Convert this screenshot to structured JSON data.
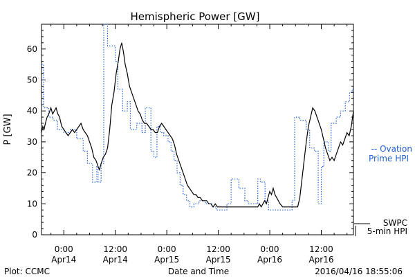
{
  "chart_data": {
    "type": "line",
    "title": "Hemispheric Power [GW]",
    "xlabel": "Date and Time",
    "ylabel": "P [GW]",
    "ylim": [
      0,
      68
    ],
    "y_ticks": [
      0,
      10,
      20,
      30,
      40,
      50,
      60
    ],
    "x_ticks": [
      {
        "t": 0,
        "line1": "0:00",
        "line2": "Apr14"
      },
      {
        "t": 12,
        "line1": "12:00",
        "line2": "Apr14"
      },
      {
        "t": 24,
        "line1": "0:00",
        "line2": "Apr15"
      },
      {
        "t": 36,
        "line1": "12:00",
        "line2": "Apr15"
      },
      {
        "t": 48,
        "line1": "0:00",
        "line2": "Apr16"
      },
      {
        "t": 60,
        "line1": "12:00",
        "line2": "Apr16"
      }
    ],
    "xlim": [
      -5.2,
      67.5
    ],
    "grid": false,
    "colors": {
      "swpc": "#000000",
      "ovation": "#1f5fd6"
    },
    "series": [
      {
        "name": "SWPC 5-min HPI",
        "style": "solid",
        "points": [
          [
            -5.2,
            33
          ],
          [
            -4.9,
            35
          ],
          [
            -4.6,
            34
          ],
          [
            -4.3,
            36
          ],
          [
            -3.9,
            38
          ],
          [
            -3.5,
            39
          ],
          [
            -3.0,
            41
          ],
          [
            -2.6,
            39
          ],
          [
            -2.2,
            40
          ],
          [
            -1.8,
            41
          ],
          [
            -1.4,
            39
          ],
          [
            -1.0,
            38
          ],
          [
            -0.5,
            35
          ],
          [
            0,
            34
          ],
          [
            0.5,
            33
          ],
          [
            1.0,
            32
          ],
          [
            1.5,
            33
          ],
          [
            2.0,
            34
          ],
          [
            2.5,
            33
          ],
          [
            3.0,
            34
          ],
          [
            3.5,
            35
          ],
          [
            4.0,
            36
          ],
          [
            4.5,
            34
          ],
          [
            5.0,
            33
          ],
          [
            5.5,
            32
          ],
          [
            6.0,
            30
          ],
          [
            6.5,
            28
          ],
          [
            7.0,
            25
          ],
          [
            7.5,
            24
          ],
          [
            8.0,
            22
          ],
          [
            8.3,
            21
          ],
          [
            8.7,
            23
          ],
          [
            9.2,
            25
          ],
          [
            9.7,
            26
          ],
          [
            10.2,
            28
          ],
          [
            10.7,
            34
          ],
          [
            11.2,
            42
          ],
          [
            11.7,
            46
          ],
          [
            12.2,
            52
          ],
          [
            12.7,
            56
          ],
          [
            13.1,
            60
          ],
          [
            13.5,
            62
          ],
          [
            13.9,
            59
          ],
          [
            14.3,
            55
          ],
          [
            14.8,
            52
          ],
          [
            15.3,
            48
          ],
          [
            15.8,
            46
          ],
          [
            16.3,
            44
          ],
          [
            16.8,
            42
          ],
          [
            17.3,
            40
          ],
          [
            17.8,
            39
          ],
          [
            18.3,
            37
          ],
          [
            18.8,
            36
          ],
          [
            19.3,
            36
          ],
          [
            19.8,
            35
          ],
          [
            20.3,
            34
          ],
          [
            20.8,
            34
          ],
          [
            21.3,
            33
          ],
          [
            21.8,
            33
          ],
          [
            22.3,
            35
          ],
          [
            22.8,
            36
          ],
          [
            23.3,
            35
          ],
          [
            23.8,
            34
          ],
          [
            24.3,
            33
          ],
          [
            24.8,
            32
          ],
          [
            25.3,
            31
          ],
          [
            25.8,
            29
          ],
          [
            26.3,
            26
          ],
          [
            26.8,
            24
          ],
          [
            27.3,
            22
          ],
          [
            27.8,
            20
          ],
          [
            28.3,
            18
          ],
          [
            28.8,
            16
          ],
          [
            29.3,
            15
          ],
          [
            29.8,
            14
          ],
          [
            30.3,
            13
          ],
          [
            30.8,
            13
          ],
          [
            31.3,
            12
          ],
          [
            31.8,
            12
          ],
          [
            32.3,
            11
          ],
          [
            32.8,
            11
          ],
          [
            33.3,
            11
          ],
          [
            33.8,
            10
          ],
          [
            34.3,
            10
          ],
          [
            34.8,
            9
          ],
          [
            35.3,
            10
          ],
          [
            35.8,
            9
          ],
          [
            36.5,
            9
          ],
          [
            37.5,
            9
          ],
          [
            38.5,
            9
          ],
          [
            39.5,
            9
          ],
          [
            40.5,
            9
          ],
          [
            41.5,
            9
          ],
          [
            42.5,
            9
          ],
          [
            43.5,
            9
          ],
          [
            44.5,
            9
          ],
          [
            45.2,
            9
          ],
          [
            45.6,
            10
          ],
          [
            46.0,
            9
          ],
          [
            46.4,
            10
          ],
          [
            46.8,
            11
          ],
          [
            47.2,
            10
          ],
          [
            47.6,
            12
          ],
          [
            48.0,
            14
          ],
          [
            48.4,
            13
          ],
          [
            48.8,
            15
          ],
          [
            49.2,
            13
          ],
          [
            49.6,
            12
          ],
          [
            50.0,
            11
          ],
          [
            50.4,
            10
          ],
          [
            51.0,
            9
          ],
          [
            52.0,
            9
          ],
          [
            53.0,
            9
          ],
          [
            54.0,
            9
          ],
          [
            54.5,
            9
          ],
          [
            55.0,
            12
          ],
          [
            55.5,
            18
          ],
          [
            56.0,
            24
          ],
          [
            56.5,
            30
          ],
          [
            57.0,
            35
          ],
          [
            57.5,
            38
          ],
          [
            58.0,
            41
          ],
          [
            58.5,
            40
          ],
          [
            59.0,
            38
          ],
          [
            59.5,
            36
          ],
          [
            60.0,
            34
          ],
          [
            60.5,
            31
          ],
          [
            61.0,
            28
          ],
          [
            61.5,
            26
          ],
          [
            62.0,
            24
          ],
          [
            62.5,
            25
          ],
          [
            63.0,
            24
          ],
          [
            63.5,
            26
          ],
          [
            64.0,
            28
          ],
          [
            64.5,
            30
          ],
          [
            65.0,
            29
          ],
          [
            65.5,
            31
          ],
          [
            66.0,
            33
          ],
          [
            66.5,
            32
          ],
          [
            67.0,
            35
          ],
          [
            67.5,
            40
          ]
        ]
      },
      {
        "name": "Ovation Prime HPI",
        "style": "dotted",
        "points": [
          [
            -5.2,
            55
          ],
          [
            -4.7,
            55
          ],
          [
            -4.7,
            41
          ],
          [
            -3.5,
            41
          ],
          [
            -3.5,
            38
          ],
          [
            -2.5,
            38
          ],
          [
            -2.5,
            37
          ],
          [
            -1.5,
            37
          ],
          [
            -1.5,
            34
          ],
          [
            0,
            34
          ],
          [
            0,
            33
          ],
          [
            1.5,
            33
          ],
          [
            1.5,
            34
          ],
          [
            3,
            34
          ],
          [
            3,
            31
          ],
          [
            4.5,
            31
          ],
          [
            4.5,
            27
          ],
          [
            5.5,
            27
          ],
          [
            5.5,
            23
          ],
          [
            6.7,
            23
          ],
          [
            6.7,
            17
          ],
          [
            7.7,
            17
          ],
          [
            7.7,
            22
          ],
          [
            8.0,
            22
          ],
          [
            8.0,
            17
          ],
          [
            8.7,
            17
          ],
          [
            8.7,
            23
          ],
          [
            9.3,
            23
          ],
          [
            9.3,
            68
          ],
          [
            10.2,
            68
          ],
          [
            10.2,
            61
          ],
          [
            12.0,
            61
          ],
          [
            12.0,
            56
          ],
          [
            12.6,
            56
          ],
          [
            12.6,
            47
          ],
          [
            13.7,
            47
          ],
          [
            13.7,
            40
          ],
          [
            14.8,
            40
          ],
          [
            14.8,
            43
          ],
          [
            15.5,
            43
          ],
          [
            15.5,
            34
          ],
          [
            17.0,
            34
          ],
          [
            17.0,
            36
          ],
          [
            18.2,
            36
          ],
          [
            18.2,
            33
          ],
          [
            19.0,
            33
          ],
          [
            19.0,
            41
          ],
          [
            20.3,
            41
          ],
          [
            20.3,
            27
          ],
          [
            21.0,
            27
          ],
          [
            21.0,
            25
          ],
          [
            21.7,
            25
          ],
          [
            21.7,
            35
          ],
          [
            22.5,
            35
          ],
          [
            22.5,
            33
          ],
          [
            23.3,
            33
          ],
          [
            23.3,
            32
          ],
          [
            24.3,
            32
          ],
          [
            24.3,
            30
          ],
          [
            25.0,
            30
          ],
          [
            25.0,
            27
          ],
          [
            25.7,
            27
          ],
          [
            25.7,
            24
          ],
          [
            26.4,
            24
          ],
          [
            26.4,
            20
          ],
          [
            27.1,
            20
          ],
          [
            27.1,
            16
          ],
          [
            27.8,
            16
          ],
          [
            27.8,
            13
          ],
          [
            28.6,
            13
          ],
          [
            28.6,
            11
          ],
          [
            29.4,
            11
          ],
          [
            29.4,
            9
          ],
          [
            30.3,
            9
          ],
          [
            30.3,
            10
          ],
          [
            31.5,
            10
          ],
          [
            31.5,
            11
          ],
          [
            33.0,
            11
          ],
          [
            33.0,
            10
          ],
          [
            34.5,
            10
          ],
          [
            34.5,
            9
          ],
          [
            35.5,
            9
          ],
          [
            35.5,
            8
          ],
          [
            38.0,
            8
          ],
          [
            38.0,
            10
          ],
          [
            39.0,
            10
          ],
          [
            39.0,
            18
          ],
          [
            40.8,
            18
          ],
          [
            40.8,
            15
          ],
          [
            42.2,
            15
          ],
          [
            42.2,
            11
          ],
          [
            43.0,
            11
          ],
          [
            43.0,
            10
          ],
          [
            45.2,
            10
          ],
          [
            45.2,
            18
          ],
          [
            45.8,
            18
          ],
          [
            45.8,
            17
          ],
          [
            46.9,
            17
          ],
          [
            46.9,
            11
          ],
          [
            47.7,
            11
          ],
          [
            47.7,
            8
          ],
          [
            53.2,
            8
          ],
          [
            53.2,
            11
          ],
          [
            53.8,
            11
          ],
          [
            53.8,
            38
          ],
          [
            55.0,
            38
          ],
          [
            55.0,
            37
          ],
          [
            56.5,
            37
          ],
          [
            56.5,
            34
          ],
          [
            57.3,
            34
          ],
          [
            57.3,
            28
          ],
          [
            58.4,
            28
          ],
          [
            58.4,
            27
          ],
          [
            59.3,
            27
          ],
          [
            59.3,
            10
          ],
          [
            60.0,
            10
          ],
          [
            60.0,
            22
          ],
          [
            60.6,
            22
          ],
          [
            60.6,
            30
          ],
          [
            61.7,
            30
          ],
          [
            61.7,
            27
          ],
          [
            62.3,
            27
          ],
          [
            62.3,
            36
          ],
          [
            63.5,
            36
          ],
          [
            63.5,
            38
          ],
          [
            64.5,
            38
          ],
          [
            64.5,
            40
          ],
          [
            65.6,
            40
          ],
          [
            65.6,
            43
          ],
          [
            66.6,
            43
          ],
          [
            66.6,
            46
          ],
          [
            67.2,
            46
          ],
          [
            67.2,
            47
          ],
          [
            67.5,
            47
          ]
        ]
      }
    ],
    "legend": {
      "position": "right",
      "ovation_line1": "-- Ovation",
      "ovation_line2": "Prime HPI",
      "swpc_line1": "SWPC",
      "swpc_line2": "5-min HPI"
    }
  },
  "footer": {
    "left": "Plot: CCMC",
    "right": "2016/04/16 18:55:06"
  }
}
